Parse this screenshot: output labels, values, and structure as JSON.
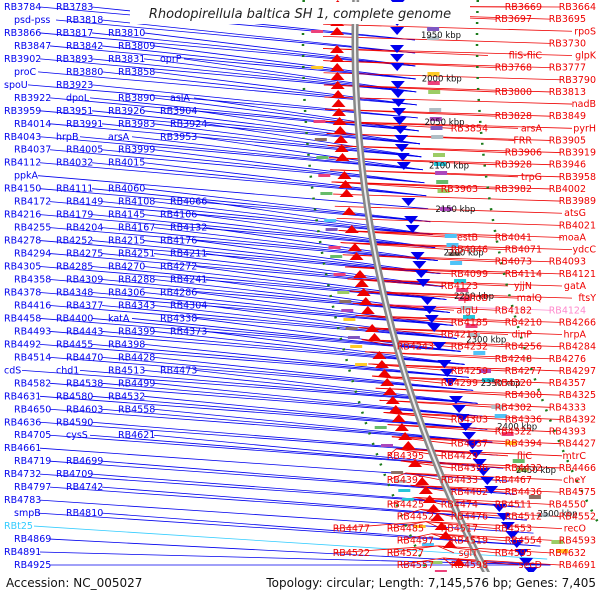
{
  "title": "Rhodopirellula baltica SH 1, complete genome",
  "footer": {
    "accession": "Accession: NC_005027",
    "summary": "Topology: circular; Length: 7,145,576 bp; Genes: 7,405"
  },
  "colors": {
    "forward": "#0000ee",
    "reverse": "#ee0000",
    "highlight_forward": "#33ccff",
    "highlight_reverse": "#ff88cc",
    "backbone": "#888888",
    "orf_ticks": "#1a7a1a"
  },
  "ruler": [
    "1950 kbp",
    "2000 kbp",
    "2050 kbp",
    "2100 kbp",
    "2150 kbp",
    "2200 kbp",
    "2250 kbp",
    "2300 kbp",
    "2350 kbp",
    "2400 kbp",
    "2450 kbp",
    "2500 kbp"
  ],
  "left_labels": [
    [
      "RB3784",
      "RB3783"
    ],
    [
      "psd-pss",
      "RB3818"
    ],
    [
      "RB3866",
      "RB3817",
      "RB3810"
    ],
    [
      "RB3847",
      "RB3842",
      "RB3809"
    ],
    [
      "RB3902",
      "RB3893",
      "RB3831",
      "oprP"
    ],
    [
      "proC",
      "RB3880",
      "RB3858"
    ],
    [
      "spoU",
      "RB3923"
    ],
    [
      "RB3922",
      "dpoL",
      "RB3890",
      "aslA"
    ],
    [
      "RB3959",
      "RB3951",
      "RB3926",
      "RB3904"
    ],
    [
      "RB4014",
      "RB3991",
      "RB3983",
      "RB3924"
    ],
    [
      "RB4043",
      "hrpB",
      "arsA",
      "RB3953"
    ],
    [
      "RB4037",
      "RB4005",
      "RB3999"
    ],
    [
      "RB4112",
      "RB4032",
      "RB4015"
    ],
    [
      "ppkA"
    ],
    [
      "RB4150",
      "RB4111",
      "RB4060"
    ],
    [
      "RB4172",
      "RB4149",
      "RB4108",
      "RB4066"
    ],
    [
      "RB4216",
      "RB4179",
      "RB4145",
      "RB4106"
    ],
    [
      "RB4255",
      "RB4204",
      "RB4167",
      "RB4132"
    ],
    [
      "RB4278",
      "RB4252",
      "RB4215",
      "RB4176"
    ],
    [
      "RB4294",
      "RB4275",
      "RB4251",
      "RB4211"
    ],
    [
      "RB4305",
      "RB4285",
      "RB4270",
      "RB4272"
    ],
    [
      "RB4358",
      "RB4309",
      "RB4288",
      "RB4241"
    ],
    [
      "RB4378",
      "RB4348",
      "RB4306",
      "RB4286"
    ],
    [
      "RB4416",
      "RB4377",
      "RB4343",
      "RB4304"
    ],
    [
      "RB4458",
      "RB4400",
      "katA",
      "RB4338"
    ],
    [
      "RB4493",
      "RB4443",
      "RB4399",
      "RB4373"
    ],
    [
      "RB4492",
      "RB4455",
      "RB4398"
    ],
    [
      "RB4514",
      "RB4470",
      "RB4428"
    ],
    [
      "cdS",
      "chd1",
      "RB4513",
      "RB4473"
    ],
    [
      "RB4582",
      "RB4538",
      "RB4499"
    ],
    [
      "RB4631",
      "RB4580",
      "RB4532"
    ],
    [
      "RB4650",
      "RB4603",
      "RB4558"
    ],
    [
      "RB4636",
      "RB4590"
    ],
    [
      "RB4705",
      "cysS",
      "RB4621"
    ],
    [
      "RB4661"
    ],
    [
      "RB4719",
      "RB4699"
    ],
    [
      "RB4732",
      "RB4709"
    ],
    [
      "RB4797",
      "RB4742"
    ],
    [
      "RB4783"
    ],
    [
      "smpB",
      "RB4810"
    ],
    [
      "RBt25"
    ],
    [
      "RB4869"
    ],
    [
      "RB4891"
    ],
    [
      "RB4925"
    ]
  ],
  "right_labels": [
    [
      "RB3664",
      "RB3669"
    ],
    [
      "RB3695",
      "RB3697"
    ],
    [
      "rpoS"
    ],
    [
      "RB3730"
    ],
    [
      "glpK",
      "fliS-fliC"
    ],
    [
      "RB3777",
      "RB3768"
    ],
    [
      "RB3790"
    ],
    [
      "RB3813",
      "RB3800"
    ],
    [
      "nadB"
    ],
    [
      "RB3849",
      "RB3828"
    ],
    [
      "pyrH",
      "arsA",
      "RB3854"
    ],
    [
      "RB3905",
      "FRR"
    ],
    [
      "RB3919",
      "RB3906"
    ],
    [
      "RB3946",
      "RB3928"
    ],
    [
      "RB3958",
      "trpG"
    ],
    [
      "RB4002",
      "RB3982",
      "RB3963"
    ],
    [
      "RB3989"
    ],
    [
      "atsG"
    ],
    [
      "RB4021"
    ],
    [
      "moaA",
      "RB4041",
      "estB"
    ],
    [
      "ydcC",
      "RB4071",
      "RB4046"
    ],
    [
      "RB4093",
      "RB4073"
    ],
    [
      "RB4121",
      "RB4114",
      "RB4099"
    ],
    [
      "gatA",
      "yjjN",
      "RB4123"
    ],
    [
      "ftsY",
      "malQ",
      "phoB"
    ],
    [
      "RB4124",
      "RB4182",
      "algU"
    ],
    [
      "RB4266",
      "RB4210",
      "RB4185"
    ],
    [
      "hrpA",
      "dinP",
      "RB4213"
    ],
    [
      "RB4284",
      "RB4256",
      "RB4232",
      "RB4243"
    ],
    [
      "RB4276",
      "RB4248"
    ],
    [
      "RB4297",
      "RB4277",
      "RB4259"
    ],
    [
      "RB4357",
      "RB4320",
      "RB4299"
    ],
    [
      "RB4325",
      "RB4300"
    ],
    [
      "RB4333",
      "RB4302"
    ],
    [
      "RB4392",
      "RB4336",
      "RB4303"
    ],
    [
      "RB4393",
      "RB4322"
    ],
    [
      "RB4427",
      "RB4394",
      "RB4337"
    ],
    [
      "mtrC",
      "fliC",
      "RB4429",
      "RB4395"
    ],
    [
      "RB4466",
      "RB4432",
      "RB4396"
    ],
    [
      "cheY",
      "RB4467",
      "RB4433",
      "RB4397"
    ],
    [
      "RB4575",
      "RB4436",
      "RB4402"
    ],
    [
      "RB4550",
      "RB4511",
      "RB4474",
      "RB4425"
    ],
    [
      "RB4552",
      "RB4512",
      "RB4476",
      "RB4452"
    ],
    [
      "recO",
      "RB4553",
      "RB4517",
      "RB4485",
      "RB4477"
    ],
    [
      "RB4593",
      "RB4554",
      "RB4519",
      "RB4497"
    ],
    [
      "RB4632",
      "RB4595",
      "sglT",
      "RB4527",
      "RB4522"
    ],
    [
      "RB4691",
      "secD",
      "RB4598",
      "RB4557"
    ]
  ]
}
